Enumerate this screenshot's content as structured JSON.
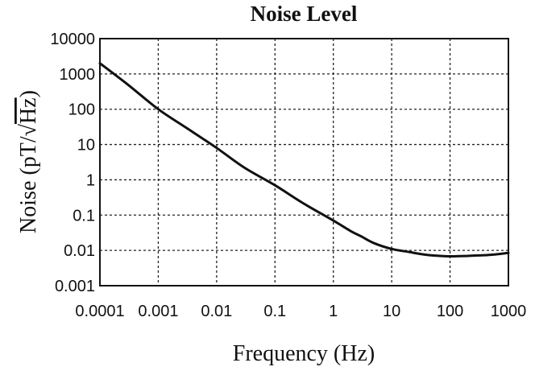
{
  "chart_data": {
    "type": "line",
    "title": "Noise Level",
    "xlabel": "Frequency (Hz)",
    "ylabel_main": "Noise (pT/",
    "ylabel_sqrt": "Hz",
    "ylabel_close": ")",
    "xscale": "log",
    "yscale": "log",
    "xlim": [
      0.0001,
      1000
    ],
    "ylim": [
      0.001,
      10000
    ],
    "grid": true,
    "xticks": [
      0.0001,
      0.001,
      0.01,
      0.1,
      1,
      10,
      100,
      1000
    ],
    "xtick_labels": [
      "0.0001",
      "0.001",
      "0.01",
      "0.1",
      "1",
      "10",
      "100",
      "1000"
    ],
    "yticks": [
      0.001,
      0.01,
      0.1,
      1,
      10,
      100,
      1000,
      10000
    ],
    "ytick_labels": [
      "0.001",
      "0.01",
      "0.1",
      "1",
      "10",
      "100",
      "1000",
      "10000"
    ],
    "series": [
      {
        "color": "#111111",
        "x": [
          0.0001,
          0.0003,
          0.001,
          0.003,
          0.01,
          0.03,
          0.1,
          0.3,
          1,
          2,
          3,
          5,
          10,
          20,
          30,
          50,
          100,
          200,
          300,
          500,
          1000
        ],
        "y": [
          2000,
          500,
          100,
          30,
          8,
          2.2,
          0.7,
          0.22,
          0.07,
          0.035,
          0.025,
          0.016,
          0.011,
          0.009,
          0.008,
          0.0072,
          0.0068,
          0.007,
          0.0072,
          0.0075,
          0.0085
        ]
      }
    ]
  }
}
